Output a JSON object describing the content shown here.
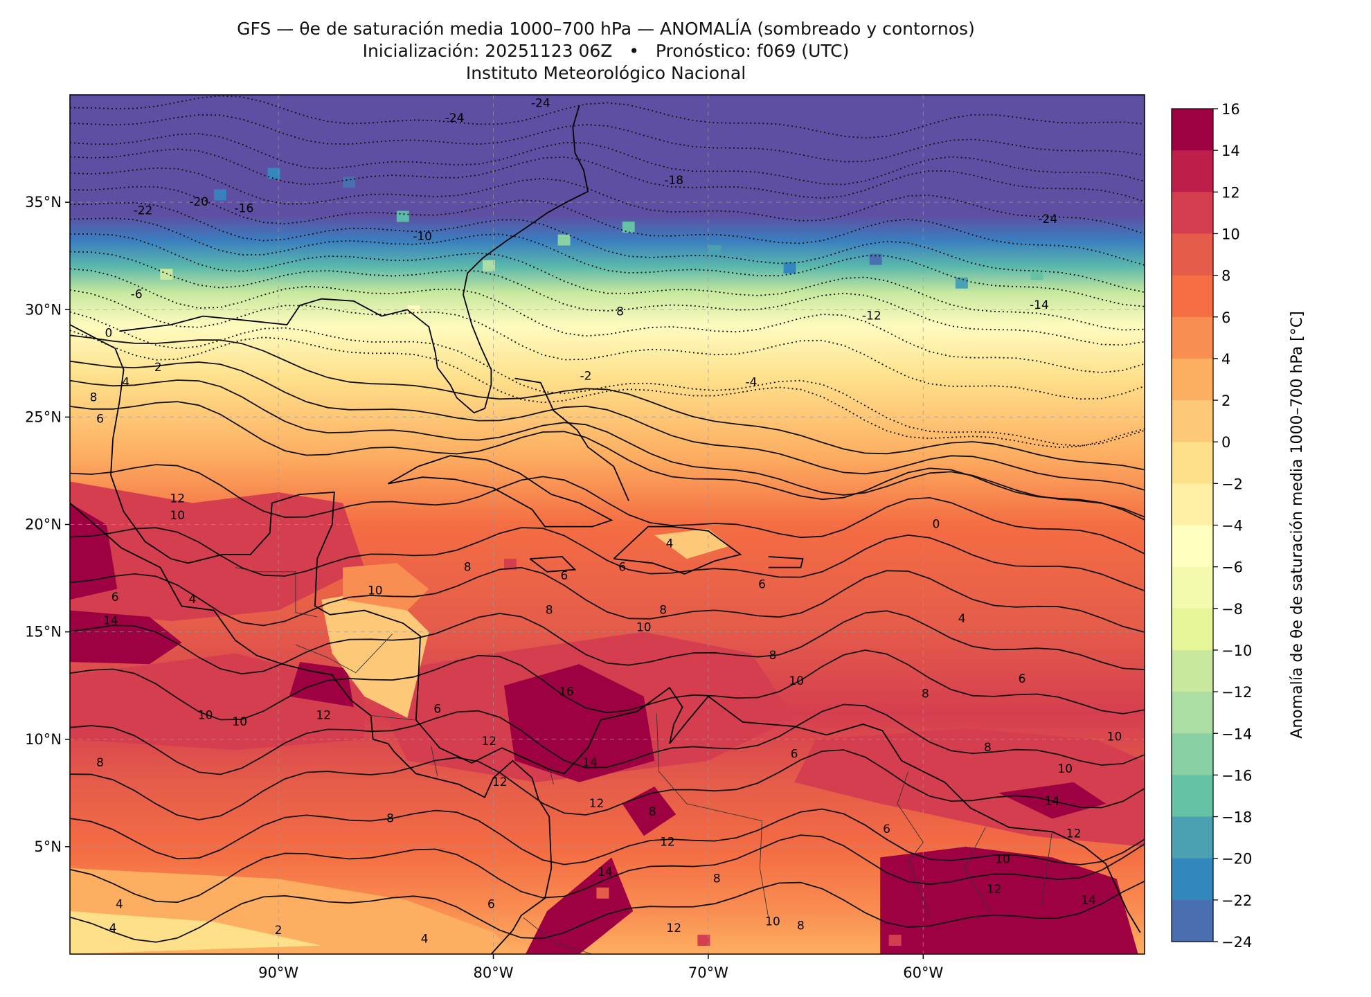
{
  "title": {
    "line1": "GFS — θe de saturación media 1000–700 hPa — ANOMALÍA (sombreado y contornos)",
    "line2": "Inicialización: 20251123 06Z   •   Pronóstico: f069 (UTC)",
    "line3": "Instituto Meteorológico Nacional"
  },
  "map": {
    "lon_range": [
      -99.7,
      -49.7
    ],
    "lat_range": [
      0,
      40
    ],
    "lon_ticks": [
      "90°W",
      "80°W",
      "70°W",
      "60°W"
    ],
    "lon_tick_values": [
      -90,
      -80,
      -70,
      -60
    ],
    "lat_ticks": [
      "35°N",
      "30°N",
      "25°N",
      "20°N",
      "15°N",
      "10°N",
      "5°N"
    ],
    "lat_tick_values": [
      35,
      30,
      25,
      20,
      15,
      10,
      5
    ],
    "gridlines": true,
    "contour_labels": [
      {
        "text": "-24",
        "lon": -81.8,
        "lat": 38.9
      },
      {
        "text": "-24",
        "lon": -77.8,
        "lat": 39.6
      },
      {
        "text": "-22",
        "lon": -96.3,
        "lat": 34.6
      },
      {
        "text": "-20",
        "lon": -93.7,
        "lat": 35.0
      },
      {
        "text": "-16",
        "lon": -91.6,
        "lat": 34.7
      },
      {
        "text": "-18",
        "lon": -71.6,
        "lat": 36.0
      },
      {
        "text": "-10",
        "lon": -83.3,
        "lat": 33.4
      },
      {
        "text": "-6",
        "lon": -96.6,
        "lat": 30.7
      },
      {
        "text": "8",
        "lon": -74.1,
        "lat": 29.9
      },
      {
        "text": "-12",
        "lon": -62.4,
        "lat": 29.7
      },
      {
        "text": "-14",
        "lon": -54.6,
        "lat": 30.2
      },
      {
        "text": "-24",
        "lon": -54.2,
        "lat": 34.2
      },
      {
        "text": "0",
        "lon": -97.9,
        "lat": 28.9
      },
      {
        "text": "2",
        "lon": -95.6,
        "lat": 27.3
      },
      {
        "text": "4",
        "lon": -97.1,
        "lat": 26.6
      },
      {
        "text": "-2",
        "lon": -75.7,
        "lat": 26.9
      },
      {
        "text": "-4",
        "lon": -68.0,
        "lat": 26.6
      },
      {
        "text": "8",
        "lon": -98.6,
        "lat": 25.9
      },
      {
        "text": "6",
        "lon": -98.3,
        "lat": 24.9
      },
      {
        "text": "12",
        "lon": -94.7,
        "lat": 21.2
      },
      {
        "text": "10",
        "lon": -94.7,
        "lat": 20.4
      },
      {
        "text": "8",
        "lon": -81.2,
        "lat": 18.0
      },
      {
        "text": "6",
        "lon": -76.7,
        "lat": 17.6
      },
      {
        "text": "6",
        "lon": -74.0,
        "lat": 18.0
      },
      {
        "text": "4",
        "lon": -71.8,
        "lat": 19.1
      },
      {
        "text": "0",
        "lon": -59.4,
        "lat": 20.0
      },
      {
        "text": "10",
        "lon": -85.5,
        "lat": 16.9
      },
      {
        "text": "6",
        "lon": -97.6,
        "lat": 16.6
      },
      {
        "text": "4",
        "lon": -94.0,
        "lat": 16.5
      },
      {
        "text": "14",
        "lon": -97.8,
        "lat": 15.5
      },
      {
        "text": "8",
        "lon": -77.4,
        "lat": 16.0
      },
      {
        "text": "8",
        "lon": -72.1,
        "lat": 16.0
      },
      {
        "text": "6",
        "lon": -67.5,
        "lat": 17.2
      },
      {
        "text": "4",
        "lon": -58.2,
        "lat": 15.6
      },
      {
        "text": "10",
        "lon": -73.0,
        "lat": 15.2
      },
      {
        "text": "8",
        "lon": -67.0,
        "lat": 13.9
      },
      {
        "text": "10",
        "lon": -65.9,
        "lat": 12.7
      },
      {
        "text": "8",
        "lon": -59.9,
        "lat": 12.1
      },
      {
        "text": "6",
        "lon": -55.4,
        "lat": 12.8
      },
      {
        "text": "12",
        "lon": -87.9,
        "lat": 11.1
      },
      {
        "text": "10",
        "lon": -93.4,
        "lat": 11.1
      },
      {
        "text": "10",
        "lon": -91.8,
        "lat": 10.8
      },
      {
        "text": "16",
        "lon": -76.6,
        "lat": 12.2
      },
      {
        "text": "6",
        "lon": -82.6,
        "lat": 11.4
      },
      {
        "text": "12",
        "lon": -80.2,
        "lat": 9.9
      },
      {
        "text": "6",
        "lon": -66.0,
        "lat": 9.3
      },
      {
        "text": "8",
        "lon": -57.0,
        "lat": 9.6
      },
      {
        "text": "10",
        "lon": -51.1,
        "lat": 10.1
      },
      {
        "text": "8",
        "lon": -98.3,
        "lat": 8.9
      },
      {
        "text": "14",
        "lon": -75.5,
        "lat": 8.9
      },
      {
        "text": "12",
        "lon": -79.7,
        "lat": 8.0
      },
      {
        "text": "12",
        "lon": -75.2,
        "lat": 7.0
      },
      {
        "text": "10",
        "lon": -53.4,
        "lat": 8.6
      },
      {
        "text": "14",
        "lon": -54.0,
        "lat": 7.1
      },
      {
        "text": "8",
        "lon": -84.8,
        "lat": 6.3
      },
      {
        "text": "8",
        "lon": -72.6,
        "lat": 6.6
      },
      {
        "text": "12",
        "lon": -71.9,
        "lat": 5.2
      },
      {
        "text": "6",
        "lon": -61.7,
        "lat": 5.8
      },
      {
        "text": "12",
        "lon": -53.0,
        "lat": 5.6
      },
      {
        "text": "10",
        "lon": -56.3,
        "lat": 4.4
      },
      {
        "text": "14",
        "lon": -74.8,
        "lat": 3.8
      },
      {
        "text": "8",
        "lon": -69.6,
        "lat": 3.5
      },
      {
        "text": "12",
        "lon": -71.6,
        "lat": 1.2
      },
      {
        "text": "10",
        "lon": -67.0,
        "lat": 1.5
      },
      {
        "text": "8",
        "lon": -65.7,
        "lat": 1.3
      },
      {
        "text": "14",
        "lon": -52.3,
        "lat": 2.5
      },
      {
        "text": "12",
        "lon": -56.7,
        "lat": 3.0
      },
      {
        "text": "6",
        "lon": -80.1,
        "lat": 2.3
      },
      {
        "text": "4",
        "lon": -97.4,
        "lat": 2.3
      },
      {
        "text": "4",
        "lon": -83.2,
        "lat": 0.7
      },
      {
        "text": "2",
        "lon": -90.0,
        "lat": 1.1
      },
      {
        "text": "4",
        "lon": -97.7,
        "lat": 1.2
      }
    ]
  },
  "colorbar": {
    "label": "Anomalía de θe de saturación media 1000–700 hPa [°C]",
    "tick_labels": [
      "16",
      "14",
      "12",
      "10",
      "8",
      "6",
      "4",
      "2",
      "0",
      "−2",
      "−4",
      "−6",
      "−8",
      "−10",
      "−12",
      "−14",
      "−16",
      "−18",
      "−20",
      "−22",
      "−24"
    ],
    "levels": [
      16,
      14,
      12,
      10,
      8,
      6,
      4,
      2,
      0,
      -2,
      -4,
      -6,
      -8,
      -10,
      -12,
      -14,
      -16,
      -18,
      -20,
      -22,
      -24
    ],
    "colors": [
      "#9e0142",
      "#be1e4a",
      "#d53e4f",
      "#e55c4a",
      "#f46d43",
      "#f98e52",
      "#fdae61",
      "#fdc877",
      "#fee08b",
      "#fff0a6",
      "#ffffbf",
      "#f3faad",
      "#e6f598",
      "#c7e89e",
      "#abdda4",
      "#89d0a4",
      "#66c2a5",
      "#4ba0b1",
      "#3288bd",
      "#4a6fb0",
      "#5e4fa2"
    ]
  }
}
